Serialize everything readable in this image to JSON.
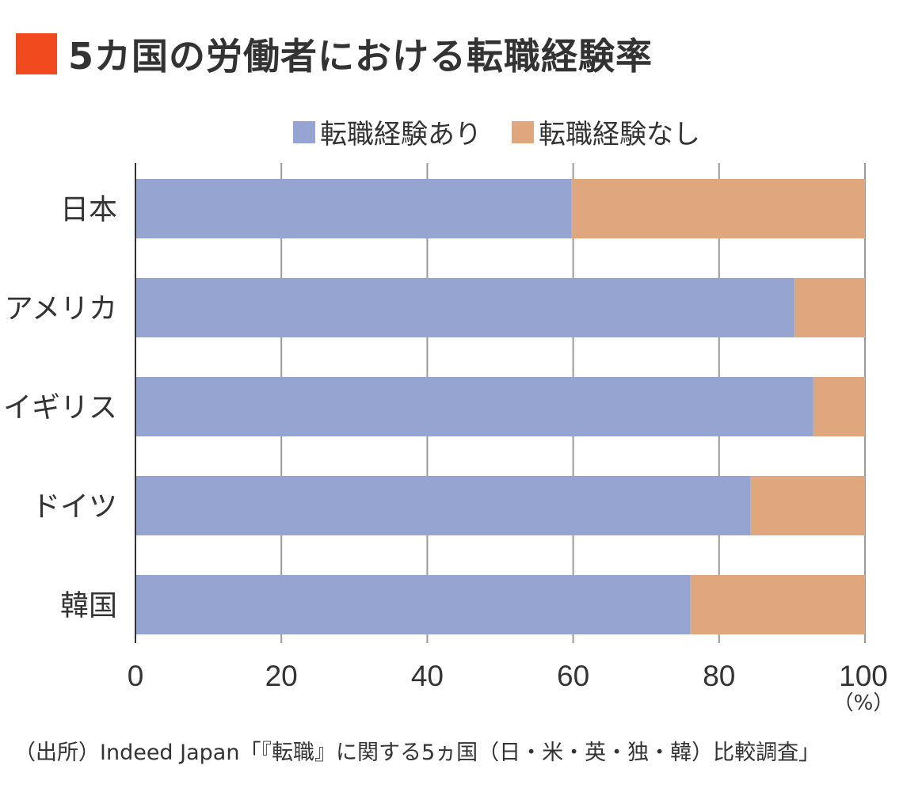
{
  "title": "5カ国の労働者における転職経験率",
  "accent_color": "#f04a1e",
  "source": "（出所）Indeed Japan「『転職』に関する5ヵ国（日・米・英・独・韓）比較調査」",
  "chart_data": {
    "type": "bar",
    "orientation": "horizontal",
    "stacked": true,
    "categories": [
      "日本",
      "アメリカ",
      "イギリス",
      "ドイツ",
      "韓国"
    ],
    "series": [
      {
        "name": "転職経験あり",
        "color": "#95a4d0",
        "values": [
          59.8,
          90.3,
          92.9,
          84.3,
          76.0
        ]
      },
      {
        "name": "転職経験なし",
        "color": "#e0a67d",
        "values": [
          40.2,
          9.7,
          7.1,
          15.7,
          24.0
        ]
      }
    ],
    "xlim": [
      0,
      100
    ],
    "xticks": [
      "0",
      "20",
      "40",
      "60",
      "80",
      "100"
    ],
    "xunit": "（%）",
    "grid": true,
    "legend": "top"
  }
}
